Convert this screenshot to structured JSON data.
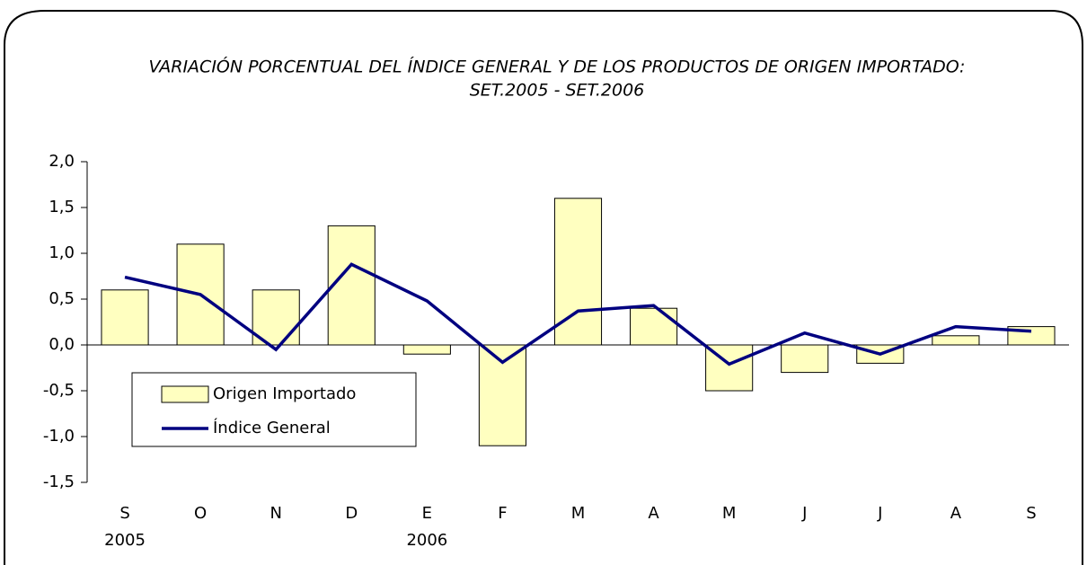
{
  "chart_data": {
    "type": "bar-line",
    "title": "VARIACIÓN PORCENTUAL DEL ÍNDICE GENERAL Y DE LOS PRODUCTOS DE ORIGEN IMPORTADO:",
    "subtitle": "SET.2005 - SET.2006",
    "categories": [
      "S",
      "O",
      "N",
      "D",
      "E",
      "F",
      "M",
      "A",
      "M",
      "J",
      "J",
      "A",
      "S"
    ],
    "category_groups": [
      "2005",
      null,
      null,
      null,
      "2006",
      null,
      null,
      null,
      null,
      null,
      null,
      null,
      null
    ],
    "series": [
      {
        "name": "Origen Importado",
        "type": "bar",
        "color": "#ffffc0",
        "values": [
          0.6,
          1.1,
          0.6,
          1.3,
          -0.1,
          -1.1,
          1.6,
          0.4,
          -0.5,
          -0.3,
          -0.2,
          0.1,
          0.2
        ]
      },
      {
        "name": "Índice General",
        "type": "line",
        "color": "#000080",
        "values": [
          0.74,
          0.55,
          -0.05,
          0.88,
          0.48,
          -0.19,
          0.37,
          0.43,
          -0.21,
          0.13,
          -0.1,
          0.2,
          0.15
        ]
      }
    ],
    "ylim": [
      -1.5,
      2
    ],
    "yticks": [
      {
        "value": -1.5,
        "label": "-1,5"
      },
      {
        "value": -1,
        "label": "-1,0"
      },
      {
        "value": -0.5,
        "label": "-0,5"
      },
      {
        "value": 0,
        "label": "0,0"
      },
      {
        "value": 0.5,
        "label": "0,5"
      },
      {
        "value": 1,
        "label": "1,0"
      },
      {
        "value": 1.5,
        "label": "1,5"
      },
      {
        "value": 2,
        "label": "2,0"
      }
    ],
    "legend": "lower left"
  }
}
